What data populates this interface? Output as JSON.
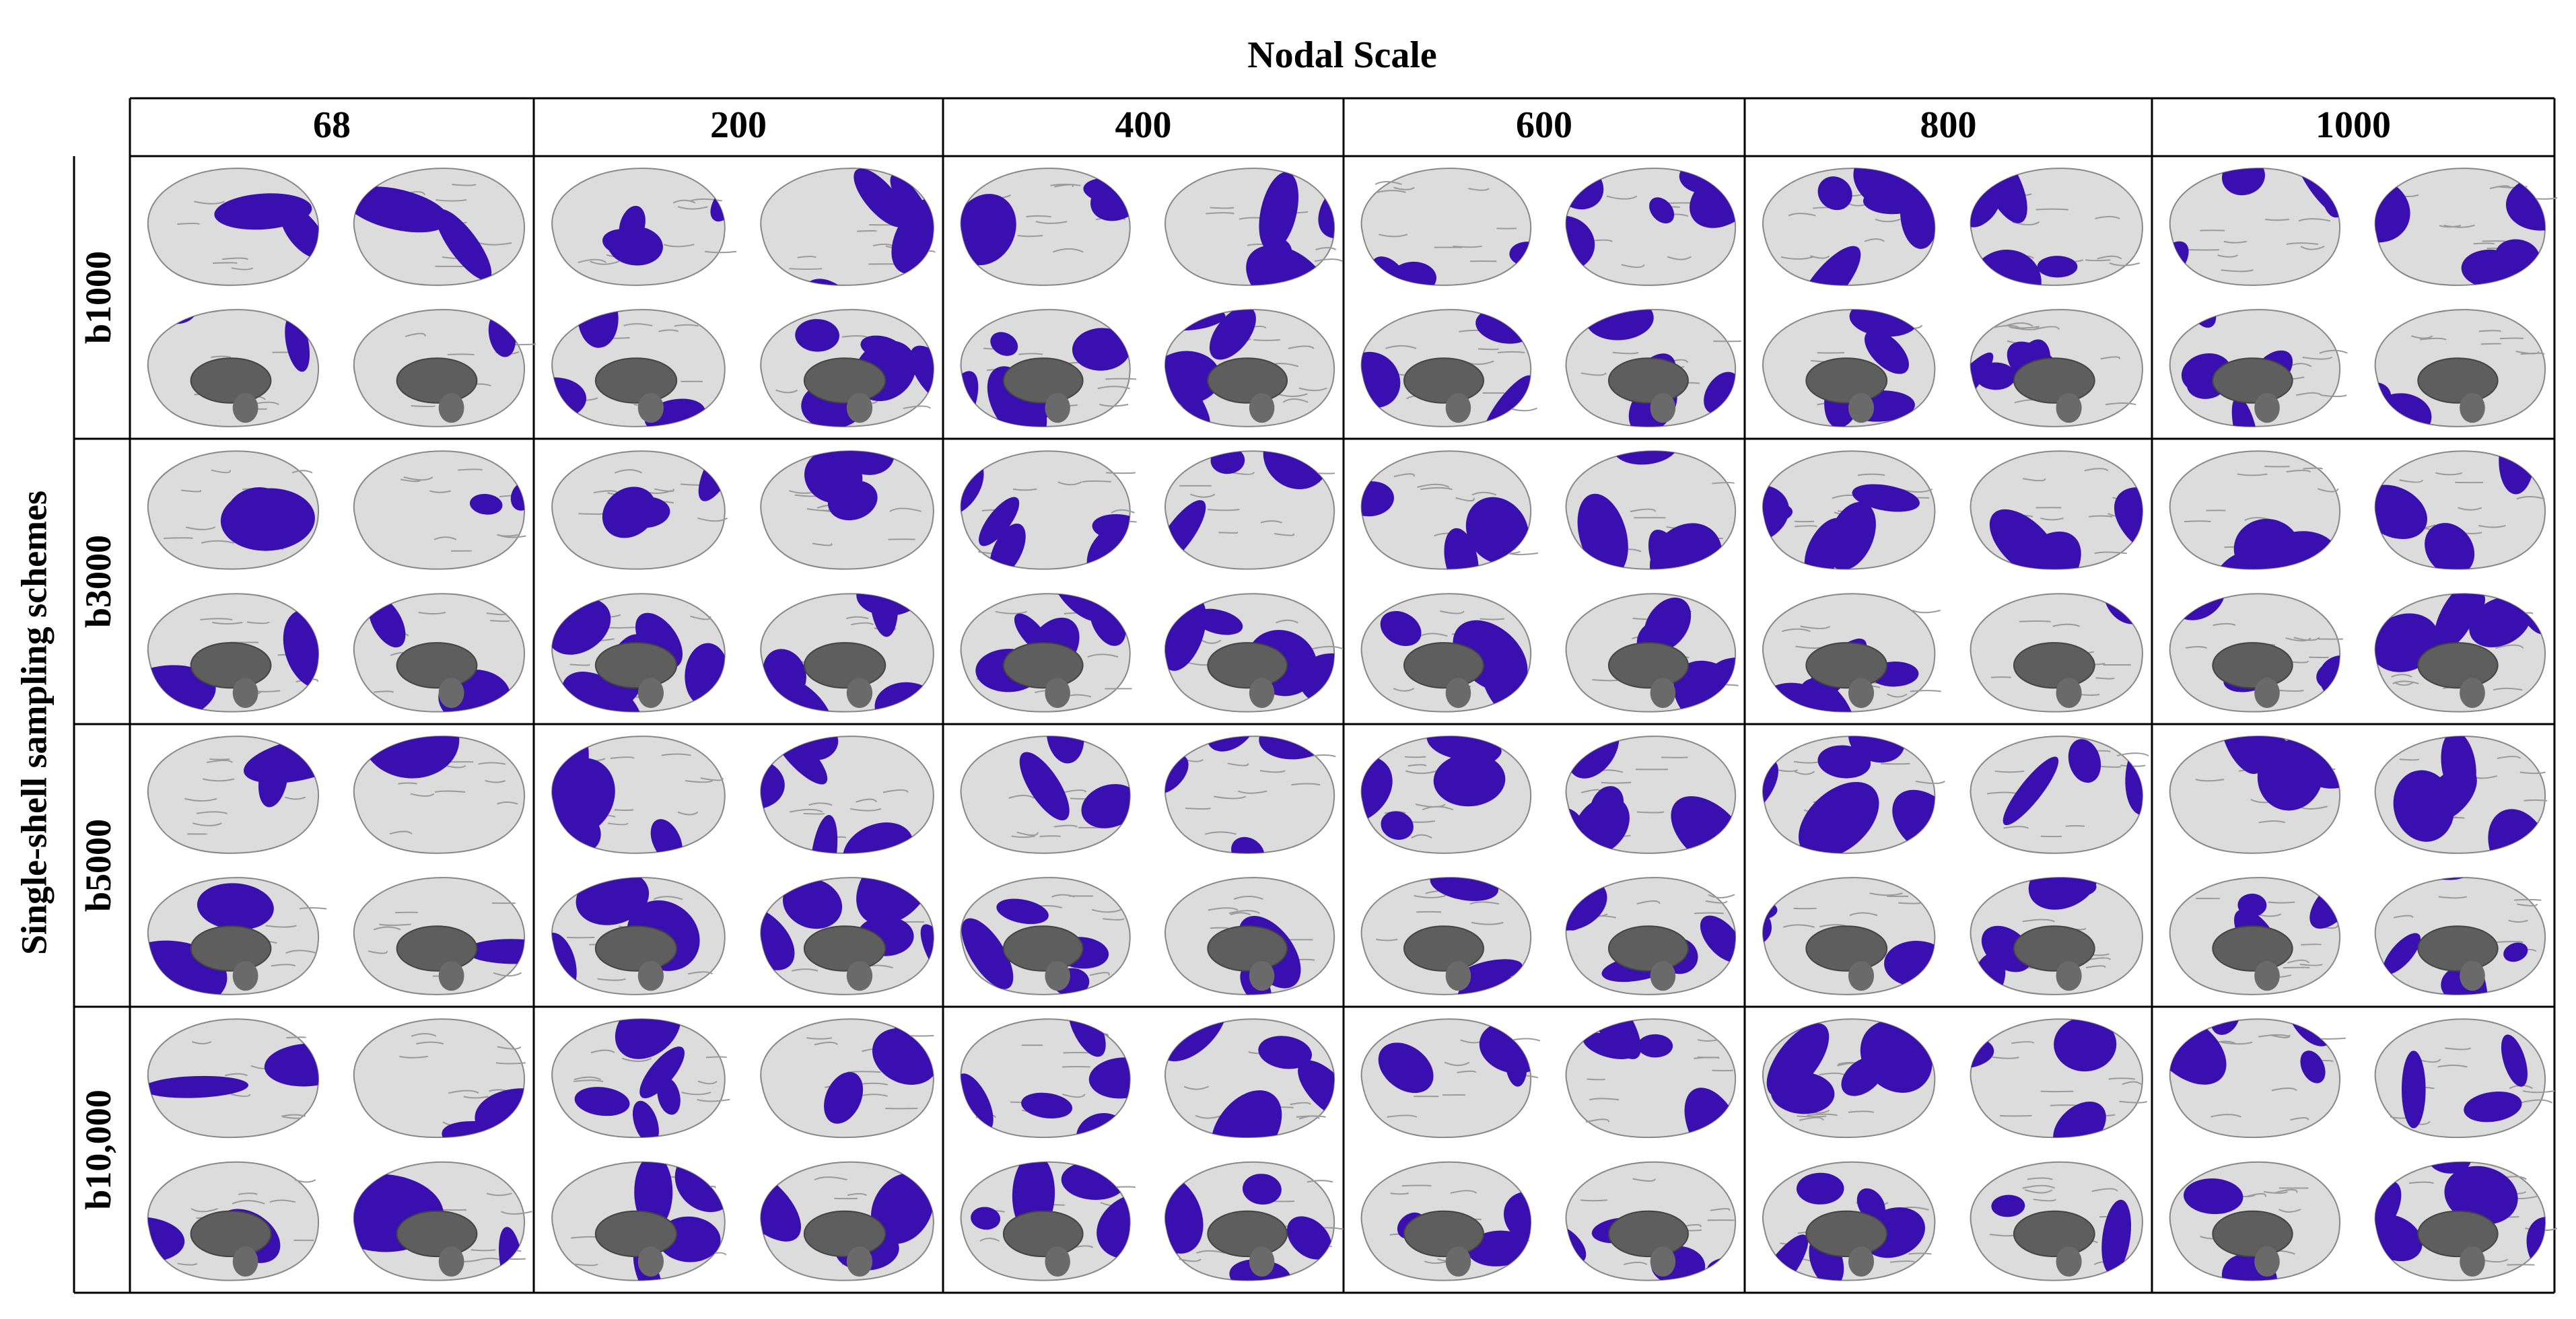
{
  "title": "Nodal Scale",
  "y_label": "Single-shell  sampling schemes",
  "columns": [
    "68",
    "200",
    "400",
    "600",
    "800",
    "1000"
  ],
  "rows": [
    "b1000",
    "b3000",
    "b5000",
    "b10,000"
  ]
}
